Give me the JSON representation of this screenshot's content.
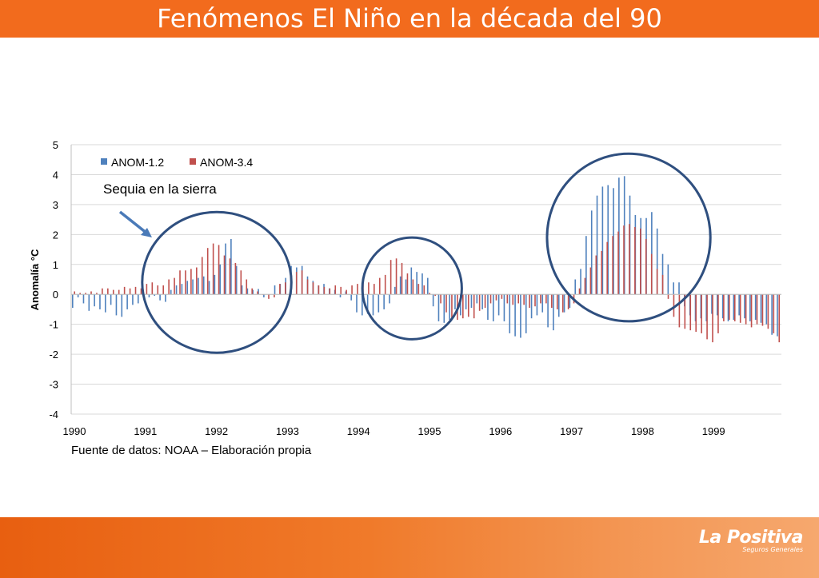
{
  "slide": {
    "title": "Fenómenos El Niño en la década del 90"
  },
  "source_note": "Fuente de datos: NOAA – Elaboración propia",
  "annotation": {
    "text": "Sequia en la sierra"
  },
  "logo": {
    "name": "La Positiva",
    "subtitle": "Seguros Generales"
  },
  "colors": {
    "header": "#f26b1d",
    "series_anom12": "#4f81bd",
    "series_anom34": "#c0504d",
    "circle": "#2f4f7f"
  },
  "chart_data": {
    "type": "bar",
    "ylabel": "Anomalía °C",
    "ylim": [
      -4,
      5
    ],
    "yticks": [
      5,
      4,
      3,
      2,
      1,
      0,
      -1,
      -2,
      -3,
      -4
    ],
    "xlim": [
      1990,
      2000
    ],
    "xticks": [
      "1990",
      "1991",
      "1992",
      "1993",
      "1994",
      "1995",
      "1996",
      "1997",
      "1998",
      "1999"
    ],
    "grid": true,
    "legend_position": "top-left",
    "series": [
      {
        "name": "ANOM-1.2",
        "values": [
          -0.45,
          -0.1,
          -0.3,
          -0.55,
          -0.4,
          -0.5,
          -0.6,
          -0.35,
          -0.7,
          -0.75,
          -0.5,
          -0.35,
          -0.3,
          -0.1,
          -0.1,
          -0.05,
          -0.2,
          -0.25,
          0.15,
          0.3,
          0.35,
          0.45,
          0.5,
          0.55,
          0.6,
          0.45,
          0.65,
          1.0,
          1.7,
          1.85,
          0.95,
          0.3,
          0.2,
          0.15,
          0.18,
          -0.1,
          0.0,
          0.3,
          0.35,
          0.55,
          0.95,
          0.9,
          0.95,
          0.6,
          0.45,
          0.3,
          0.35,
          0.2,
          0.15,
          -0.1,
          0.1,
          -0.2,
          -0.6,
          -0.7,
          -0.65,
          -0.7,
          -0.6,
          -0.5,
          -0.3,
          0.25,
          0.6,
          0.5,
          0.9,
          0.75,
          0.7,
          0.55,
          -0.4,
          -0.9,
          -0.95,
          -0.85,
          -0.5,
          -0.7,
          -0.5,
          -0.45,
          -0.3,
          -0.5,
          -0.85,
          -0.9,
          -0.7,
          -0.9,
          -1.3,
          -1.4,
          -1.45,
          -1.3,
          -0.8,
          -0.7,
          -0.6,
          -1.1,
          -1.2,
          -0.75,
          -0.6,
          -0.45,
          0.5,
          0.85,
          1.95,
          2.8,
          3.3,
          3.6,
          3.65,
          3.55,
          3.9,
          3.95,
          3.3,
          2.65,
          2.55,
          2.55,
          2.75,
          2.2,
          1.35,
          1.0,
          0.4,
          0.4,
          -0.4,
          -0.7,
          -0.9,
          -0.8,
          -0.9,
          -0.65,
          -0.7,
          -0.8,
          -0.9,
          -0.85,
          -0.7,
          -0.8,
          -0.9,
          -0.85,
          -0.95,
          -1.0,
          -1.35,
          -1.4
        ]
      },
      {
        "name": "ANOM-3.4",
        "values": [
          0.1,
          0.05,
          0.05,
          0.1,
          0.05,
          0.2,
          0.2,
          0.15,
          0.15,
          0.25,
          0.2,
          0.25,
          0.2,
          0.35,
          0.4,
          0.3,
          0.3,
          0.5,
          0.55,
          0.8,
          0.8,
          0.85,
          0.9,
          1.25,
          1.55,
          1.7,
          1.65,
          1.3,
          1.2,
          1.05,
          0.8,
          0.5,
          0.2,
          0.1,
          0.0,
          -0.15,
          -0.1,
          0.35,
          0.4,
          0.45,
          0.75,
          0.8,
          0.5,
          0.4,
          0.3,
          0.25,
          0.2,
          0.3,
          0.25,
          0.15,
          0.3,
          0.35,
          0.4,
          0.4,
          0.35,
          0.55,
          0.65,
          1.15,
          1.2,
          1.05,
          0.7,
          0.5,
          0.35,
          0.3,
          0.05,
          -0.05,
          -0.3,
          -0.6,
          -0.8,
          -0.85,
          -0.8,
          -0.75,
          -0.8,
          -0.55,
          -0.45,
          -0.3,
          -0.2,
          -0.15,
          -0.3,
          -0.35,
          -0.3,
          -0.35,
          -0.45,
          -0.4,
          -0.3,
          -0.3,
          -0.45,
          -0.5,
          -0.6,
          -0.5,
          -0.3,
          0.2,
          0.55,
          0.9,
          1.3,
          1.45,
          1.75,
          1.95,
          2.1,
          2.3,
          2.35,
          2.25,
          2.2,
          1.85,
          1.35,
          0.85,
          0.65,
          -0.15,
          -0.75,
          -1.1,
          -1.15,
          -1.2,
          -1.25,
          -1.3,
          -1.5,
          -1.6,
          -1.3,
          -0.9,
          -0.85,
          -0.9,
          -0.95,
          -1.0,
          -1.1,
          -1.0,
          -1.05,
          -1.15,
          -1.3,
          -1.6
        ]
      }
    ],
    "highlight_ellipses": [
      {
        "x_center": 1992.05,
        "y_center": 0.4,
        "x_radius": 1.05,
        "y_radius": 2.35
      },
      {
        "x_center": 1994.8,
        "y_center": 0.2,
        "x_radius": 0.7,
        "y_radius": 1.7
      },
      {
        "x_center": 1997.85,
        "y_center": 1.9,
        "x_radius": 1.15,
        "y_radius": 2.8
      }
    ]
  }
}
